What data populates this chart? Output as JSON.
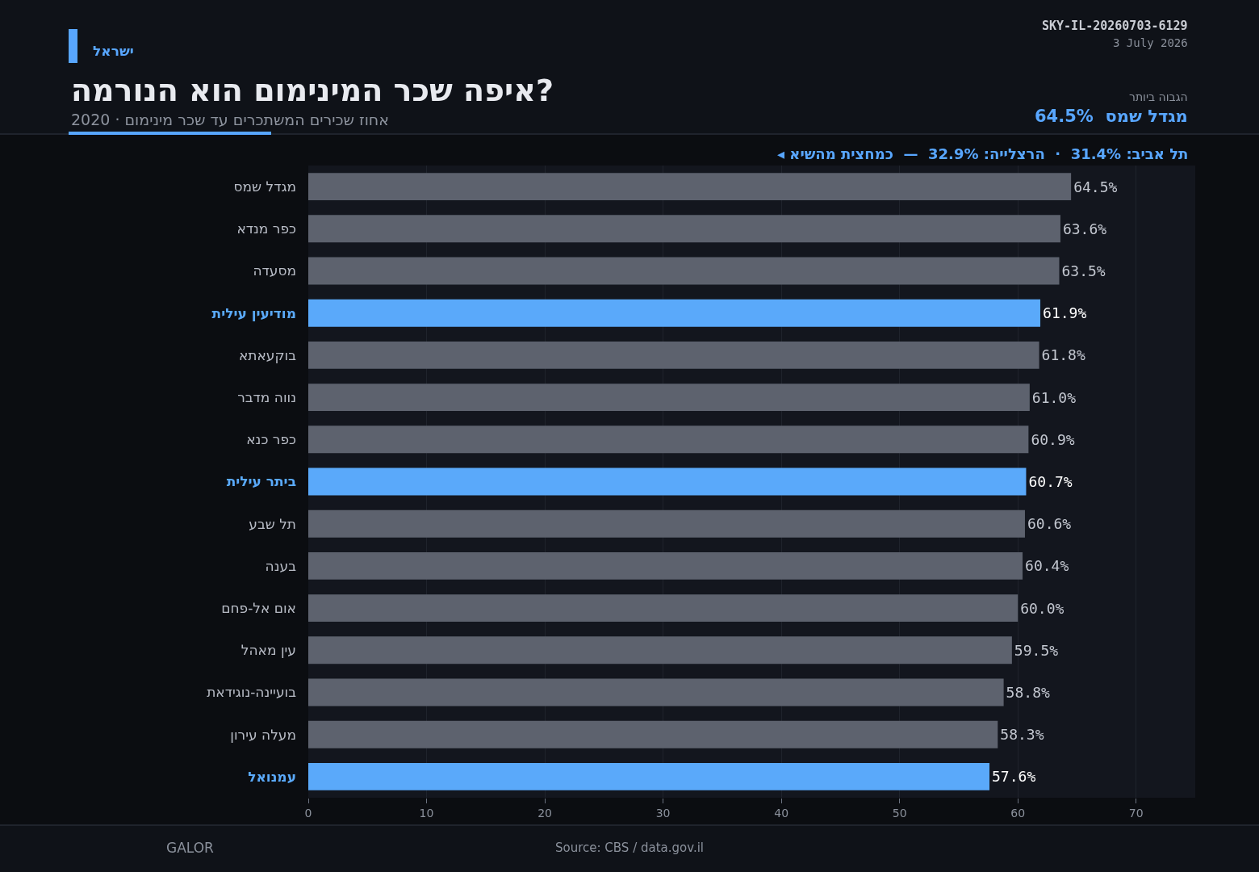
{
  "chart_data": {
    "type": "bar",
    "orientation": "horizontal",
    "title": "איפה שכר המינימום הוא הנורמה?",
    "subtitle": "אחוז שכירים המשתכרים עד שכר מינימום · 2020",
    "categories": [
      "מגדל שמס",
      "כפר מנדא",
      "מסעדה",
      "מודיעין עילית",
      "בוקעאתא",
      "נווה מדבר",
      "כפר כנא",
      "ביתר עילית",
      "תל שבע",
      "בענה",
      "אום אל-פחם",
      "עין מאהל",
      "בועיינה-נוגידאת",
      "מעלה עירון",
      "עמנואל"
    ],
    "values": [
      64.5,
      63.6,
      63.5,
      61.9,
      61.8,
      61.0,
      60.9,
      60.7,
      60.6,
      60.4,
      60.0,
      59.5,
      58.8,
      58.3,
      57.6
    ],
    "value_labels": [
      "64.5%",
      "63.6%",
      "63.5%",
      "61.9%",
      "61.8%",
      "61.0%",
      "60.9%",
      "60.7%",
      "60.6%",
      "60.4%",
      "60.0%",
      "59.5%",
      "58.8%",
      "58.3%",
      "57.6%"
    ],
    "colors": [
      "#5d626e",
      "#5d626e",
      "#5d626e",
      "#5aa9fa",
      "#5d626e",
      "#5d626e",
      "#5d626e",
      "#5aa9fa",
      "#5d626e",
      "#5d626e",
      "#5d626e",
      "#5d626e",
      "#5d626e",
      "#5d626e",
      "#5aa9fa"
    ],
    "xlim": [
      0,
      75
    ],
    "xticks": [
      0,
      10,
      20,
      30,
      40,
      50,
      60,
      70
    ],
    "grid": "x",
    "annotations": [
      "ישראל",
      "SKY-IL-20260703-6129",
      "3 July 2026",
      "הגבוה ביותר",
      "מגדל שמס  64.5%",
      "◂ תל אביב: 31.4%  ·  הרצלייה: 32.9%  —  כמחצית מהשיא",
      "GALOR",
      "Source: CBS / data.gov.il"
    ]
  }
}
